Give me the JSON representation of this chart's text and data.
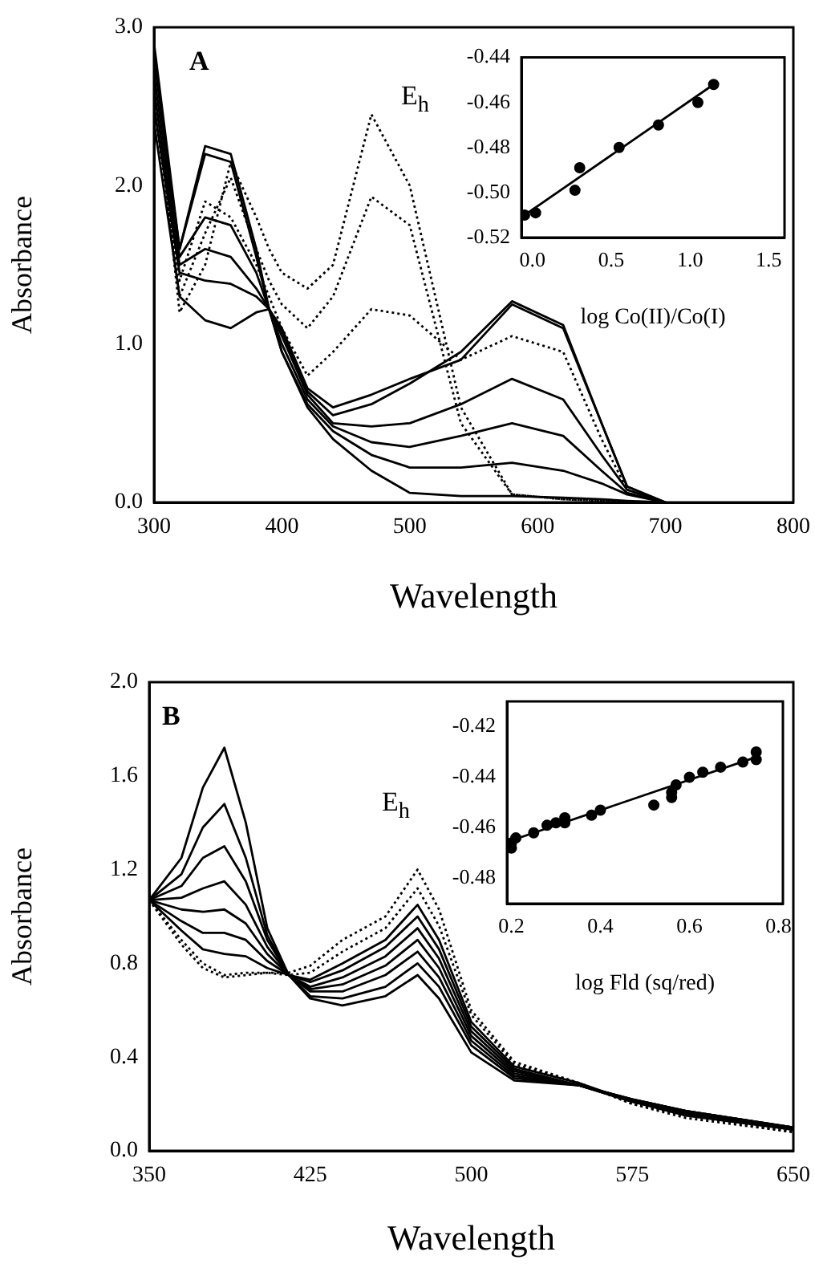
{
  "chart_data": [
    {
      "type": "line",
      "xlabel": "Wavelength",
      "ylabel": "Absorbance",
      "annotations": [
        "A"
      ],
      "marker": "none",
      "xlim": [
        300,
        800
      ],
      "ylim": [
        0,
        3
      ],
      "xticks": [
        300,
        400,
        500,
        600,
        700,
        800
      ],
      "yticks": [
        {
          "value": 0,
          "label": "0.0"
        },
        {
          "value": 1,
          "label": "1.0"
        },
        {
          "value": 2,
          "label": "2.0"
        },
        {
          "value": 3,
          "label": "3.0"
        }
      ],
      "x": [
        300,
        320,
        340,
        360,
        380,
        390,
        400,
        420,
        440,
        470,
        500,
        540,
        580,
        620,
        650,
        670,
        700
      ],
      "series": [
        {
          "color": "#000000",
          "line_style": "solid",
          "values": [
            2.9,
            1.6,
            2.25,
            2.2,
            1.6,
            1.22,
            0.95,
            0.6,
            0.4,
            0.2,
            0.06,
            0.04,
            0.04,
            0.03,
            0.02,
            0.01,
            0.0
          ]
        },
        {
          "color": "#000000",
          "line_style": "solid",
          "values": [
            2.8,
            1.6,
            2.2,
            2.15,
            1.55,
            1.22,
            0.95,
            0.62,
            0.45,
            0.3,
            0.22,
            0.22,
            0.25,
            0.2,
            0.12,
            0.05,
            0.0
          ]
        },
        {
          "color": "#000000",
          "line_style": "solid",
          "values": [
            2.7,
            1.55,
            1.8,
            1.75,
            1.45,
            1.22,
            1.0,
            0.65,
            0.48,
            0.38,
            0.35,
            0.42,
            0.5,
            0.42,
            0.2,
            0.06,
            0.0
          ]
        },
        {
          "color": "#000000",
          "line_style": "solid",
          "values": [
            2.6,
            1.5,
            1.6,
            1.55,
            1.35,
            1.22,
            1.05,
            0.68,
            0.5,
            0.48,
            0.5,
            0.62,
            0.78,
            0.65,
            0.3,
            0.08,
            0.0
          ]
        },
        {
          "color": "#000000",
          "line_style": "solid",
          "values": [
            2.5,
            1.45,
            1.4,
            1.38,
            1.3,
            1.22,
            1.08,
            0.7,
            0.55,
            0.62,
            0.75,
            0.95,
            1.27,
            1.12,
            0.5,
            0.1,
            0.0
          ]
        },
        {
          "color": "#000000",
          "line_style": "solid",
          "values": [
            2.4,
            1.3,
            1.15,
            1.1,
            1.2,
            1.22,
            1.1,
            0.72,
            0.6,
            0.68,
            0.78,
            0.9,
            1.25,
            1.1,
            0.5,
            0.1,
            0.0
          ]
        },
        {
          "color": "#000000",
          "line_style": "dotted",
          "values": [
            2.7,
            1.2,
            1.5,
            2.15,
            1.8,
            1.6,
            1.45,
            1.35,
            1.5,
            2.45,
            2.0,
            0.6,
            0.05,
            0.02,
            0.01,
            0.0,
            0.0
          ]
        },
        {
          "color": "#000000",
          "line_style": "dotted",
          "values": [
            2.6,
            1.3,
            1.7,
            2.05,
            1.6,
            1.4,
            1.25,
            1.1,
            1.3,
            1.93,
            1.75,
            0.5,
            0.05,
            0.02,
            0.01,
            0.0,
            0.0
          ]
        },
        {
          "color": "#000000",
          "line_style": "dotted",
          "values": [
            2.5,
            1.4,
            1.9,
            1.8,
            1.5,
            1.3,
            1.1,
            0.8,
            0.95,
            1.22,
            1.18,
            0.9,
            1.05,
            0.95,
            0.4,
            0.08,
            0.0
          ]
        }
      ]
    },
    {
      "type": "scatter",
      "xlabel": "log Co(II)/Co(I)",
      "ylabel": "E$_{h}$",
      "xlim": [
        -0.07,
        1.6
      ],
      "ylim": [
        -0.52,
        -0.44
      ],
      "xticks": [
        {
          "value": 0,
          "label": "0.0"
        },
        0.5,
        {
          "value": 1,
          "label": "1.0"
        },
        1.5
      ],
      "yticks": [
        -0.44,
        -0.46,
        -0.48,
        {
          "value": -0.5,
          "label": "-0.50"
        },
        -0.52
      ],
      "series": [
        {
          "color": "#000000",
          "marker": "circle",
          "x": [
            -0.05,
            0.02,
            0.27,
            0.3,
            0.55,
            0.8,
            1.05,
            1.15
          ],
          "values": [
            -0.51,
            -0.509,
            -0.499,
            -0.489,
            -0.48,
            -0.47,
            -0.46,
            -0.452
          ]
        },
        {
          "type": "line",
          "color": "#000000",
          "marker": "none",
          "line_style": "solid",
          "x": [
            -0.07,
            1.15
          ],
          "values": [
            -0.511,
            -0.452
          ]
        }
      ]
    },
    {
      "type": "line",
      "xlabel": "Wavelength",
      "ylabel": "Absorbance",
      "annotations": [
        "B"
      ],
      "marker": "none",
      "xlim": [
        350,
        650
      ],
      "ylim": [
        0,
        2
      ],
      "xticks": [
        350,
        425,
        500,
        575,
        650
      ],
      "yticks": [
        {
          "value": 0,
          "label": "0.0"
        },
        0.4,
        0.8,
        1.2,
        1.6,
        {
          "value": 2,
          "label": "2.0"
        }
      ],
      "x": [
        350,
        365,
        375,
        385,
        395,
        405,
        415,
        425,
        440,
        460,
        475,
        485,
        500,
        520,
        550,
        575,
        600,
        650
      ],
      "series": [
        {
          "color": "#000000",
          "line_style": "solid",
          "values": [
            1.07,
            1.25,
            1.55,
            1.72,
            1.4,
            0.95,
            0.75,
            0.65,
            0.62,
            0.66,
            0.75,
            0.65,
            0.42,
            0.3,
            0.28,
            0.22,
            0.17,
            0.1
          ]
        },
        {
          "color": "#000000",
          "line_style": "solid",
          "values": [
            1.07,
            1.18,
            1.38,
            1.48,
            1.25,
            0.92,
            0.75,
            0.66,
            0.65,
            0.7,
            0.8,
            0.7,
            0.45,
            0.31,
            0.28,
            0.22,
            0.17,
            0.1
          ]
        },
        {
          "color": "#000000",
          "line_style": "solid",
          "values": [
            1.07,
            1.13,
            1.25,
            1.3,
            1.15,
            0.9,
            0.75,
            0.68,
            0.68,
            0.75,
            0.85,
            0.74,
            0.47,
            0.32,
            0.28,
            0.22,
            0.17,
            0.1
          ]
        },
        {
          "color": "#000000",
          "line_style": "solid",
          "values": [
            1.07,
            1.08,
            1.12,
            1.15,
            1.05,
            0.87,
            0.75,
            0.69,
            0.71,
            0.79,
            0.9,
            0.78,
            0.49,
            0.33,
            0.28,
            0.21,
            0.16,
            0.1
          ]
        },
        {
          "color": "#000000",
          "line_style": "solid",
          "values": [
            1.07,
            1.03,
            1.02,
            1.03,
            0.97,
            0.84,
            0.75,
            0.7,
            0.74,
            0.83,
            0.95,
            0.82,
            0.51,
            0.34,
            0.28,
            0.21,
            0.16,
            0.09
          ]
        },
        {
          "color": "#000000",
          "line_style": "solid",
          "values": [
            1.07,
            0.98,
            0.93,
            0.93,
            0.9,
            0.81,
            0.75,
            0.72,
            0.77,
            0.87,
            1.0,
            0.86,
            0.53,
            0.35,
            0.28,
            0.21,
            0.16,
            0.09
          ]
        },
        {
          "color": "#000000",
          "line_style": "solid",
          "values": [
            1.07,
            0.94,
            0.86,
            0.84,
            0.83,
            0.78,
            0.75,
            0.73,
            0.8,
            0.9,
            1.05,
            0.9,
            0.55,
            0.36,
            0.29,
            0.21,
            0.15,
            0.09
          ]
        },
        {
          "color": "#000000",
          "line_style": "dotted",
          "values": [
            1.07,
            0.9,
            0.8,
            0.75,
            0.76,
            0.76,
            0.75,
            0.76,
            0.85,
            0.95,
            1.12,
            0.96,
            0.58,
            0.37,
            0.29,
            0.2,
            0.15,
            0.08
          ]
        },
        {
          "color": "#000000",
          "line_style": "dotted",
          "values": [
            1.07,
            0.88,
            0.78,
            0.74,
            0.75,
            0.76,
            0.76,
            0.79,
            0.9,
            1.0,
            1.2,
            1.03,
            0.6,
            0.38,
            0.29,
            0.2,
            0.14,
            0.08
          ]
        }
      ]
    },
    {
      "type": "scatter",
      "xlabel": "log Fld (sq/red)",
      "ylabel": "E$_{h}$",
      "xlim": [
        0.19,
        0.81
      ],
      "ylim": [
        -0.49,
        -0.41
      ],
      "xticks": [
        0.2,
        0.4,
        0.6,
        0.8
      ],
      "yticks": [
        -0.42,
        -0.44,
        -0.46,
        -0.48
      ],
      "series": [
        {
          "color": "#000000",
          "marker": "circle",
          "x": [
            0.2,
            0.2,
            0.21,
            0.25,
            0.28,
            0.3,
            0.32,
            0.32,
            0.38,
            0.4,
            0.52,
            0.56,
            0.56,
            0.57,
            0.6,
            0.63,
            0.67,
            0.72,
            0.75,
            0.75
          ],
          "values": [
            -0.468,
            -0.466,
            -0.464,
            -0.462,
            -0.459,
            -0.458,
            -0.456,
            -0.458,
            -0.455,
            -0.453,
            -0.451,
            -0.448,
            -0.446,
            -0.443,
            -0.44,
            -0.438,
            -0.436,
            -0.434,
            -0.43,
            -0.433
          ]
        },
        {
          "type": "line",
          "color": "#000000",
          "marker": "none",
          "line_style": "solid",
          "x": [
            0.2,
            0.75
          ],
          "values": [
            -0.465,
            -0.432
          ]
        }
      ]
    }
  ]
}
